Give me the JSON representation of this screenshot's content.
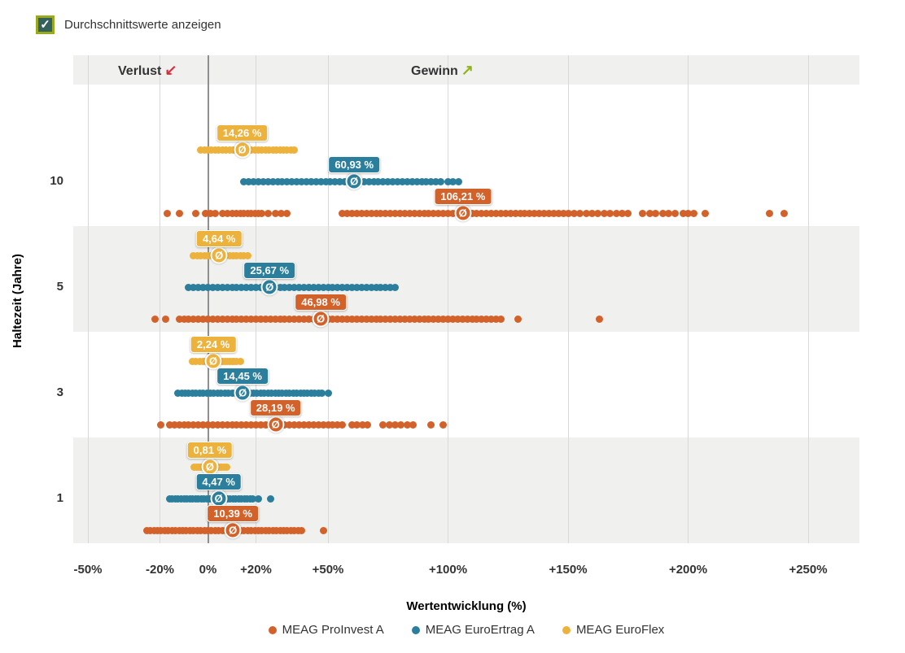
{
  "controls": {
    "checkbox_label": "Durchschnittswerte anzeigen",
    "checked": true,
    "checkmark_glyph": "✓"
  },
  "annotations": {
    "loss_label": "Verlust",
    "loss_arrow_glyph": "↙",
    "gain_label": "Gewinn",
    "gain_arrow_glyph": "↗"
  },
  "colors": {
    "proinvest": "#d2622a",
    "euroertrag": "#2b7f9d",
    "euroflex": "#edb23c",
    "loss_arrow": "#d22f3e",
    "gain_arrow": "#93b31a",
    "zero_line": "#8f8f8f",
    "gridline": "#d9d9d9",
    "band_gray": "#f0f0ef",
    "checkbox_border": "#9aaa1c",
    "checkbox_fill": "#33615c"
  },
  "chart_data": {
    "type": "scatter",
    "title": "",
    "xlabel": "Wertentwicklung (%)",
    "ylabel": "Haltezeit (Jahre)",
    "xlim": [
      -56,
      271
    ],
    "grid": true,
    "legend_position": "bottom",
    "x_ticks": [
      {
        "value": -50,
        "label": "-50%"
      },
      {
        "value": -20,
        "label": "-20%"
      },
      {
        "value": 0,
        "label": "0%"
      },
      {
        "value": 20,
        "label": "+20%"
      },
      {
        "value": 50,
        "label": "+50%"
      },
      {
        "value": 100,
        "label": "+100%"
      },
      {
        "value": 150,
        "label": "+150%"
      },
      {
        "value": 200,
        "label": "+200%"
      },
      {
        "value": 250,
        "label": "+250%"
      }
    ],
    "y_categories": [
      "10",
      "5",
      "3",
      "1"
    ],
    "periods": [
      {
        "holding_years": "10",
        "strips": [
          {
            "fund": "MEAG EuroFlex",
            "color": "#edb23c",
            "avg": 14.26,
            "avg_label": "14,26 %",
            "points": [
              -3,
              -1.5,
              0,
              1.5,
              3,
              4.5,
              6,
              7.5,
              9,
              10.5,
              12,
              13.5,
              15,
              16.5,
              18,
              19.5,
              21,
              22.5,
              24,
              25.5,
              27,
              28.5,
              30,
              31.5,
              33,
              34.5,
              36
            ]
          },
          {
            "fund": "MEAG EuroErtrag A",
            "color": "#2b7f9d",
            "avg": 60.93,
            "avg_label": "60,93 %",
            "points": [
              15,
              17,
              19,
              21,
              23,
              25,
              27,
              29,
              31,
              33,
              35,
              37,
              39,
              41,
              43,
              45,
              47,
              49,
              51,
              53,
              55,
              57,
              59,
              61,
              63,
              65,
              67,
              69,
              71,
              73,
              75,
              77,
              79,
              81,
              83,
              85,
              87,
              89,
              91,
              93,
              95,
              97,
              100,
              102,
              104.5
            ]
          },
          {
            "fund": "MEAG ProInvest A",
            "color": "#d2622a",
            "avg": 106.21,
            "avg_label": "106,21 %",
            "points": [
              -17,
              -12,
              -5,
              -1,
              1,
              3,
              6,
              8,
              10,
              12,
              13.5,
              15,
              16.5,
              18,
              19.5,
              21,
              22.5,
              25,
              28,
              30.5,
              33,
              56,
              58,
              60,
              62,
              64,
              66,
              68,
              70,
              72,
              74,
              76,
              78,
              80,
              82,
              84,
              86,
              88,
              90,
              92,
              94,
              96,
              98,
              100,
              102,
              104,
              106,
              108,
              110,
              112,
              114,
              116,
              118,
              120,
              122,
              124,
              126,
              128,
              130,
              132,
              134,
              136,
              138,
              140,
              142,
              144,
              146,
              148,
              150,
              152.5,
              155,
              157.5,
              160,
              162.5,
              165,
              167.5,
              170,
              172.5,
              175,
              181,
              184,
              186.5,
              189.5,
              192,
              194.5,
              198,
              200,
              202.5,
              207,
              234,
              240
            ]
          }
        ]
      },
      {
        "holding_years": "5",
        "strips": [
          {
            "fund": "MEAG EuroFlex",
            "color": "#edb23c",
            "avg": 4.64,
            "avg_label": "4,64 %",
            "points": [
              -6,
              -4.5,
              -3,
              -1.5,
              0,
              1.5,
              3,
              4.5,
              6,
              7.5,
              9,
              10.5,
              12,
              13.5,
              15,
              16.5
            ]
          },
          {
            "fund": "MEAG EuroErtrag A",
            "color": "#2b7f9d",
            "avg": 25.67,
            "avg_label": "25,67 %",
            "points": [
              -8,
              -6,
              -4,
              -2,
              0,
              2,
              4,
              6,
              8,
              10,
              12,
              14,
              16,
              18,
              20,
              22,
              24,
              26,
              28,
              30,
              32,
              34,
              36,
              38,
              40,
              42,
              44,
              46,
              48,
              50,
              52,
              54,
              56,
              58,
              60,
              62,
              64,
              66,
              68,
              70,
              72,
              74,
              76,
              78
            ]
          },
          {
            "fund": "MEAG ProInvest A",
            "color": "#d2622a",
            "avg": 46.98,
            "avg_label": "46,98 %",
            "points": [
              -22,
              -17.5,
              -12,
              -10,
              -8,
              -6,
              -4,
              -2,
              0,
              2,
              4,
              6,
              8,
              10,
              12,
              14,
              16,
              18,
              20,
              22,
              24,
              26,
              28,
              30,
              32,
              34,
              36,
              38,
              40,
              42,
              44,
              46,
              48,
              50,
              52,
              54,
              56,
              58,
              60,
              62,
              64,
              66,
              68,
              70,
              72,
              74,
              76,
              78,
              80,
              82,
              84,
              86,
              88,
              90,
              92,
              94,
              96,
              98,
              100,
              102,
              104,
              106,
              108,
              110,
              112,
              114,
              116,
              118,
              120,
              122,
              129,
              163
            ]
          }
        ]
      },
      {
        "holding_years": "3",
        "strips": [
          {
            "fund": "MEAG EuroFlex",
            "color": "#edb23c",
            "avg": 2.24,
            "avg_label": "2,24 %",
            "points": [
              -6.5,
              -5,
              -3.5,
              -2,
              -1,
              0,
              1,
              2,
              3,
              4,
              5,
              6,
              7,
              8,
              9,
              10,
              11,
              12,
              13.5
            ]
          },
          {
            "fund": "MEAG EuroErtrag A",
            "color": "#2b7f9d",
            "avg": 14.45,
            "avg_label": "14,45 %",
            "points": [
              -12.5,
              -11,
              -9.5,
              -8,
              -6.5,
              -5,
              -3.5,
              -2,
              -0.5,
              1,
              2.5,
              4,
              5.5,
              7,
              8.5,
              10,
              11.5,
              13,
              14.5,
              16,
              17.5,
              19,
              20.5,
              22,
              23.5,
              25,
              26.5,
              28,
              29.5,
              31,
              32.5,
              34,
              35.5,
              37,
              38.5,
              40,
              41.5,
              43,
              44.5,
              46,
              47.5,
              50
            ]
          },
          {
            "fund": "MEAG ProInvest A",
            "color": "#d2622a",
            "avg": 28.19,
            "avg_label": "28,19 %",
            "points": [
              -19.5,
              -16,
              -14,
              -12,
              -10,
              -8,
              -6,
              -4,
              -2,
              0,
              2,
              4,
              6,
              8,
              10,
              12,
              14,
              16,
              18,
              20,
              22,
              24,
              26,
              28,
              30,
              32,
              34,
              36,
              38,
              40,
              42,
              44,
              46,
              48,
              50,
              52,
              54,
              56,
              60,
              62,
              64.5,
              66.5,
              73,
              75.5,
              78,
              80.5,
              83,
              85.5,
              93,
              98
            ]
          }
        ]
      },
      {
        "holding_years": "1",
        "strips": [
          {
            "fund": "MEAG EuroFlex",
            "color": "#edb23c",
            "avg": 0.81,
            "avg_label": "0,81 %",
            "points": [
              -5.8,
              -4.9,
              -4,
              -3.1,
              -2.2,
              -1.3,
              -0.4,
              0.5,
              1.4,
              2.3,
              3.2,
              4.1,
              5,
              5.9,
              6.8,
              7.7
            ]
          },
          {
            "fund": "MEAG EuroErtrag A",
            "color": "#2b7f9d",
            "avg": 4.47,
            "avg_label": "4,47 %",
            "points": [
              -16,
              -14.8,
              -13.6,
              -12.4,
              -11.2,
              -10,
              -8.8,
              -7.6,
              -6.4,
              -5.2,
              -4,
              -2.8,
              -1.6,
              -0.4,
              0.8,
              2,
              3.2,
              4.4,
              5.6,
              6.8,
              8,
              9.2,
              10.4,
              11.6,
              12.8,
              14,
              15.2,
              16.4,
              17.6,
              18.8,
              21,
              26
            ]
          },
          {
            "fund": "MEAG ProInvest A",
            "color": "#d2622a",
            "avg": 10.39,
            "avg_label": "10,39 %",
            "points": [
              -25.5,
              -24,
              -22.5,
              -21,
              -19.5,
              -18,
              -16.5,
              -15,
              -13.5,
              -12,
              -10.5,
              -9,
              -7.5,
              -6,
              -4.5,
              -3,
              -1.5,
              0,
              1.5,
              3,
              4.5,
              6,
              7.5,
              9,
              10.5,
              12,
              13.5,
              15,
              16.5,
              18,
              19.5,
              21,
              22.5,
              24,
              25.5,
              27,
              28.5,
              30,
              31.5,
              33,
              34.5,
              36,
              37.5,
              39,
              48
            ]
          }
        ]
      }
    ]
  },
  "legend": {
    "items": [
      {
        "label": "MEAG ProInvest A",
        "color": "#d2622a"
      },
      {
        "label": "MEAG EuroErtrag A",
        "color": "#2b7f9d"
      },
      {
        "label": "MEAG EuroFlex",
        "color": "#edb23c"
      }
    ]
  }
}
